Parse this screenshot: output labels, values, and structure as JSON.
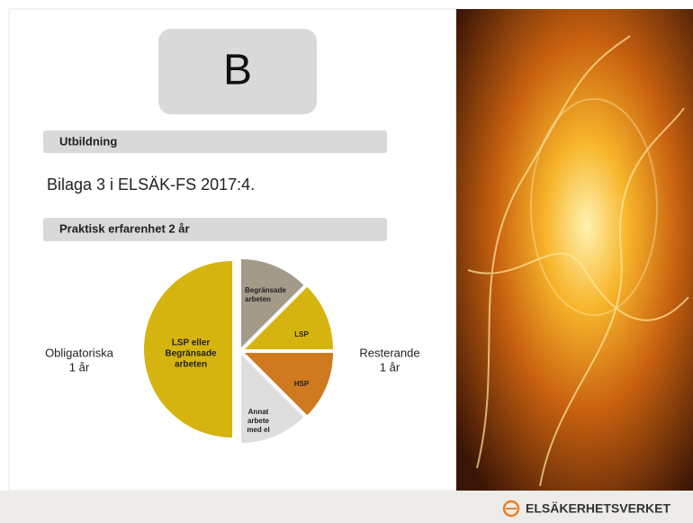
{
  "badge": "B",
  "sections": [
    {
      "heading": "Utbildning",
      "text": "Bilaga 3 i ELSÄK-FS 2017:4."
    },
    {
      "heading": "Praktisk erfarenhet 2 år"
    }
  ],
  "diagram": {
    "left_label": [
      "Obligatoriska",
      "1 år"
    ],
    "right_label": [
      "Resterande",
      "1 år"
    ],
    "segments": [
      {
        "label": [
          "LSP eller",
          "Begränsade",
          "arbeten"
        ]
      },
      {
        "label": [
          "Begränsade",
          "arbeten"
        ]
      },
      {
        "label": [
          "LSP"
        ]
      },
      {
        "label": [
          "HSP"
        ]
      },
      {
        "label": [
          "Annat",
          "arbete",
          "med el"
        ]
      }
    ]
  },
  "footer": {
    "logo_text": "ELSÄKERHETSVERKET"
  }
}
